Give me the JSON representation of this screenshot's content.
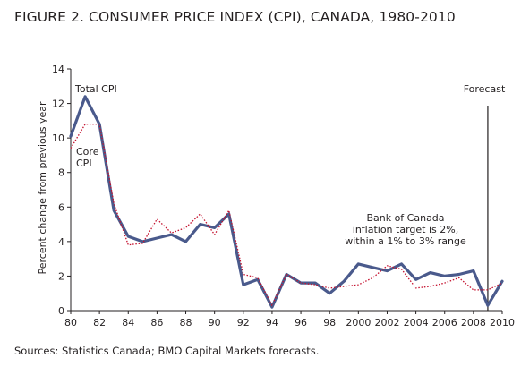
{
  "title": "FIGURE 2. CONSUMER PRICE INDEX (CPI), CANADA, 1980-2010",
  "source": "Sources: Statistics Canada; BMO Capital Markets forecasts.",
  "chart_data": {
    "type": "line",
    "ylabel": "Percent change from previous year",
    "xlabel": "",
    "xlim": [
      1980,
      2010
    ],
    "ylim": [
      0,
      14
    ],
    "x_ticks": [
      1980,
      1982,
      1984,
      1986,
      1988,
      1990,
      1992,
      1994,
      1996,
      1998,
      2000,
      2002,
      2004,
      2006,
      2008,
      2010
    ],
    "x_tick_labels": [
      "80",
      "82",
      "84",
      "86",
      "88",
      "90",
      "92",
      "94",
      "96",
      "98",
      "2000",
      "2002",
      "2004",
      "2006",
      "2008",
      "2010"
    ],
    "y_ticks": [
      0,
      2,
      4,
      6,
      8,
      10,
      12,
      14
    ],
    "y_tick_labels": [
      "0",
      "2",
      "4",
      "6",
      "8",
      "10",
      "12",
      "14"
    ],
    "x": [
      1980,
      1981,
      1982,
      1983,
      1984,
      1985,
      1986,
      1987,
      1988,
      1989,
      1990,
      1991,
      1992,
      1993,
      1994,
      1995,
      1996,
      1997,
      1998,
      1999,
      2000,
      2001,
      2002,
      2003,
      2004,
      2005,
      2006,
      2007,
      2008,
      2009,
      2010
    ],
    "series": [
      {
        "name": "Total CPI",
        "color": "#4a5a8c",
        "style": "solid",
        "values": [
          10.1,
          12.4,
          10.8,
          5.8,
          4.3,
          4.0,
          4.2,
          4.4,
          4.0,
          5.0,
          4.8,
          5.6,
          1.5,
          1.8,
          0.2,
          2.1,
          1.6,
          1.6,
          1.0,
          1.7,
          2.7,
          2.5,
          2.3,
          2.7,
          1.8,
          2.2,
          2.0,
          2.1,
          2.3,
          0.3,
          1.7
        ]
      },
      {
        "name": "Core CPI",
        "color": "#c4122f",
        "style": "dotted",
        "values": [
          9.4,
          10.8,
          10.8,
          6.2,
          3.8,
          3.9,
          5.3,
          4.5,
          4.8,
          5.6,
          4.4,
          5.8,
          2.1,
          1.9,
          0.3,
          2.1,
          1.6,
          1.5,
          1.3,
          1.4,
          1.5,
          1.9,
          2.6,
          2.4,
          1.3,
          1.4,
          1.6,
          1.9,
          1.2,
          1.2,
          1.6
        ]
      }
    ],
    "annotations": {
      "total_cpi_label": "Total CPI",
      "core_cpi_label_line1": "Core",
      "core_cpi_label_line2": "CPI",
      "forecast_label": "Forecast",
      "forecast_x": 2009,
      "target_note_line1": "Bank of Canada",
      "target_note_line2": "inflation target is 2%,",
      "target_note_line3": "within a 1% to 3% range"
    },
    "grid": false,
    "legend": "none"
  }
}
